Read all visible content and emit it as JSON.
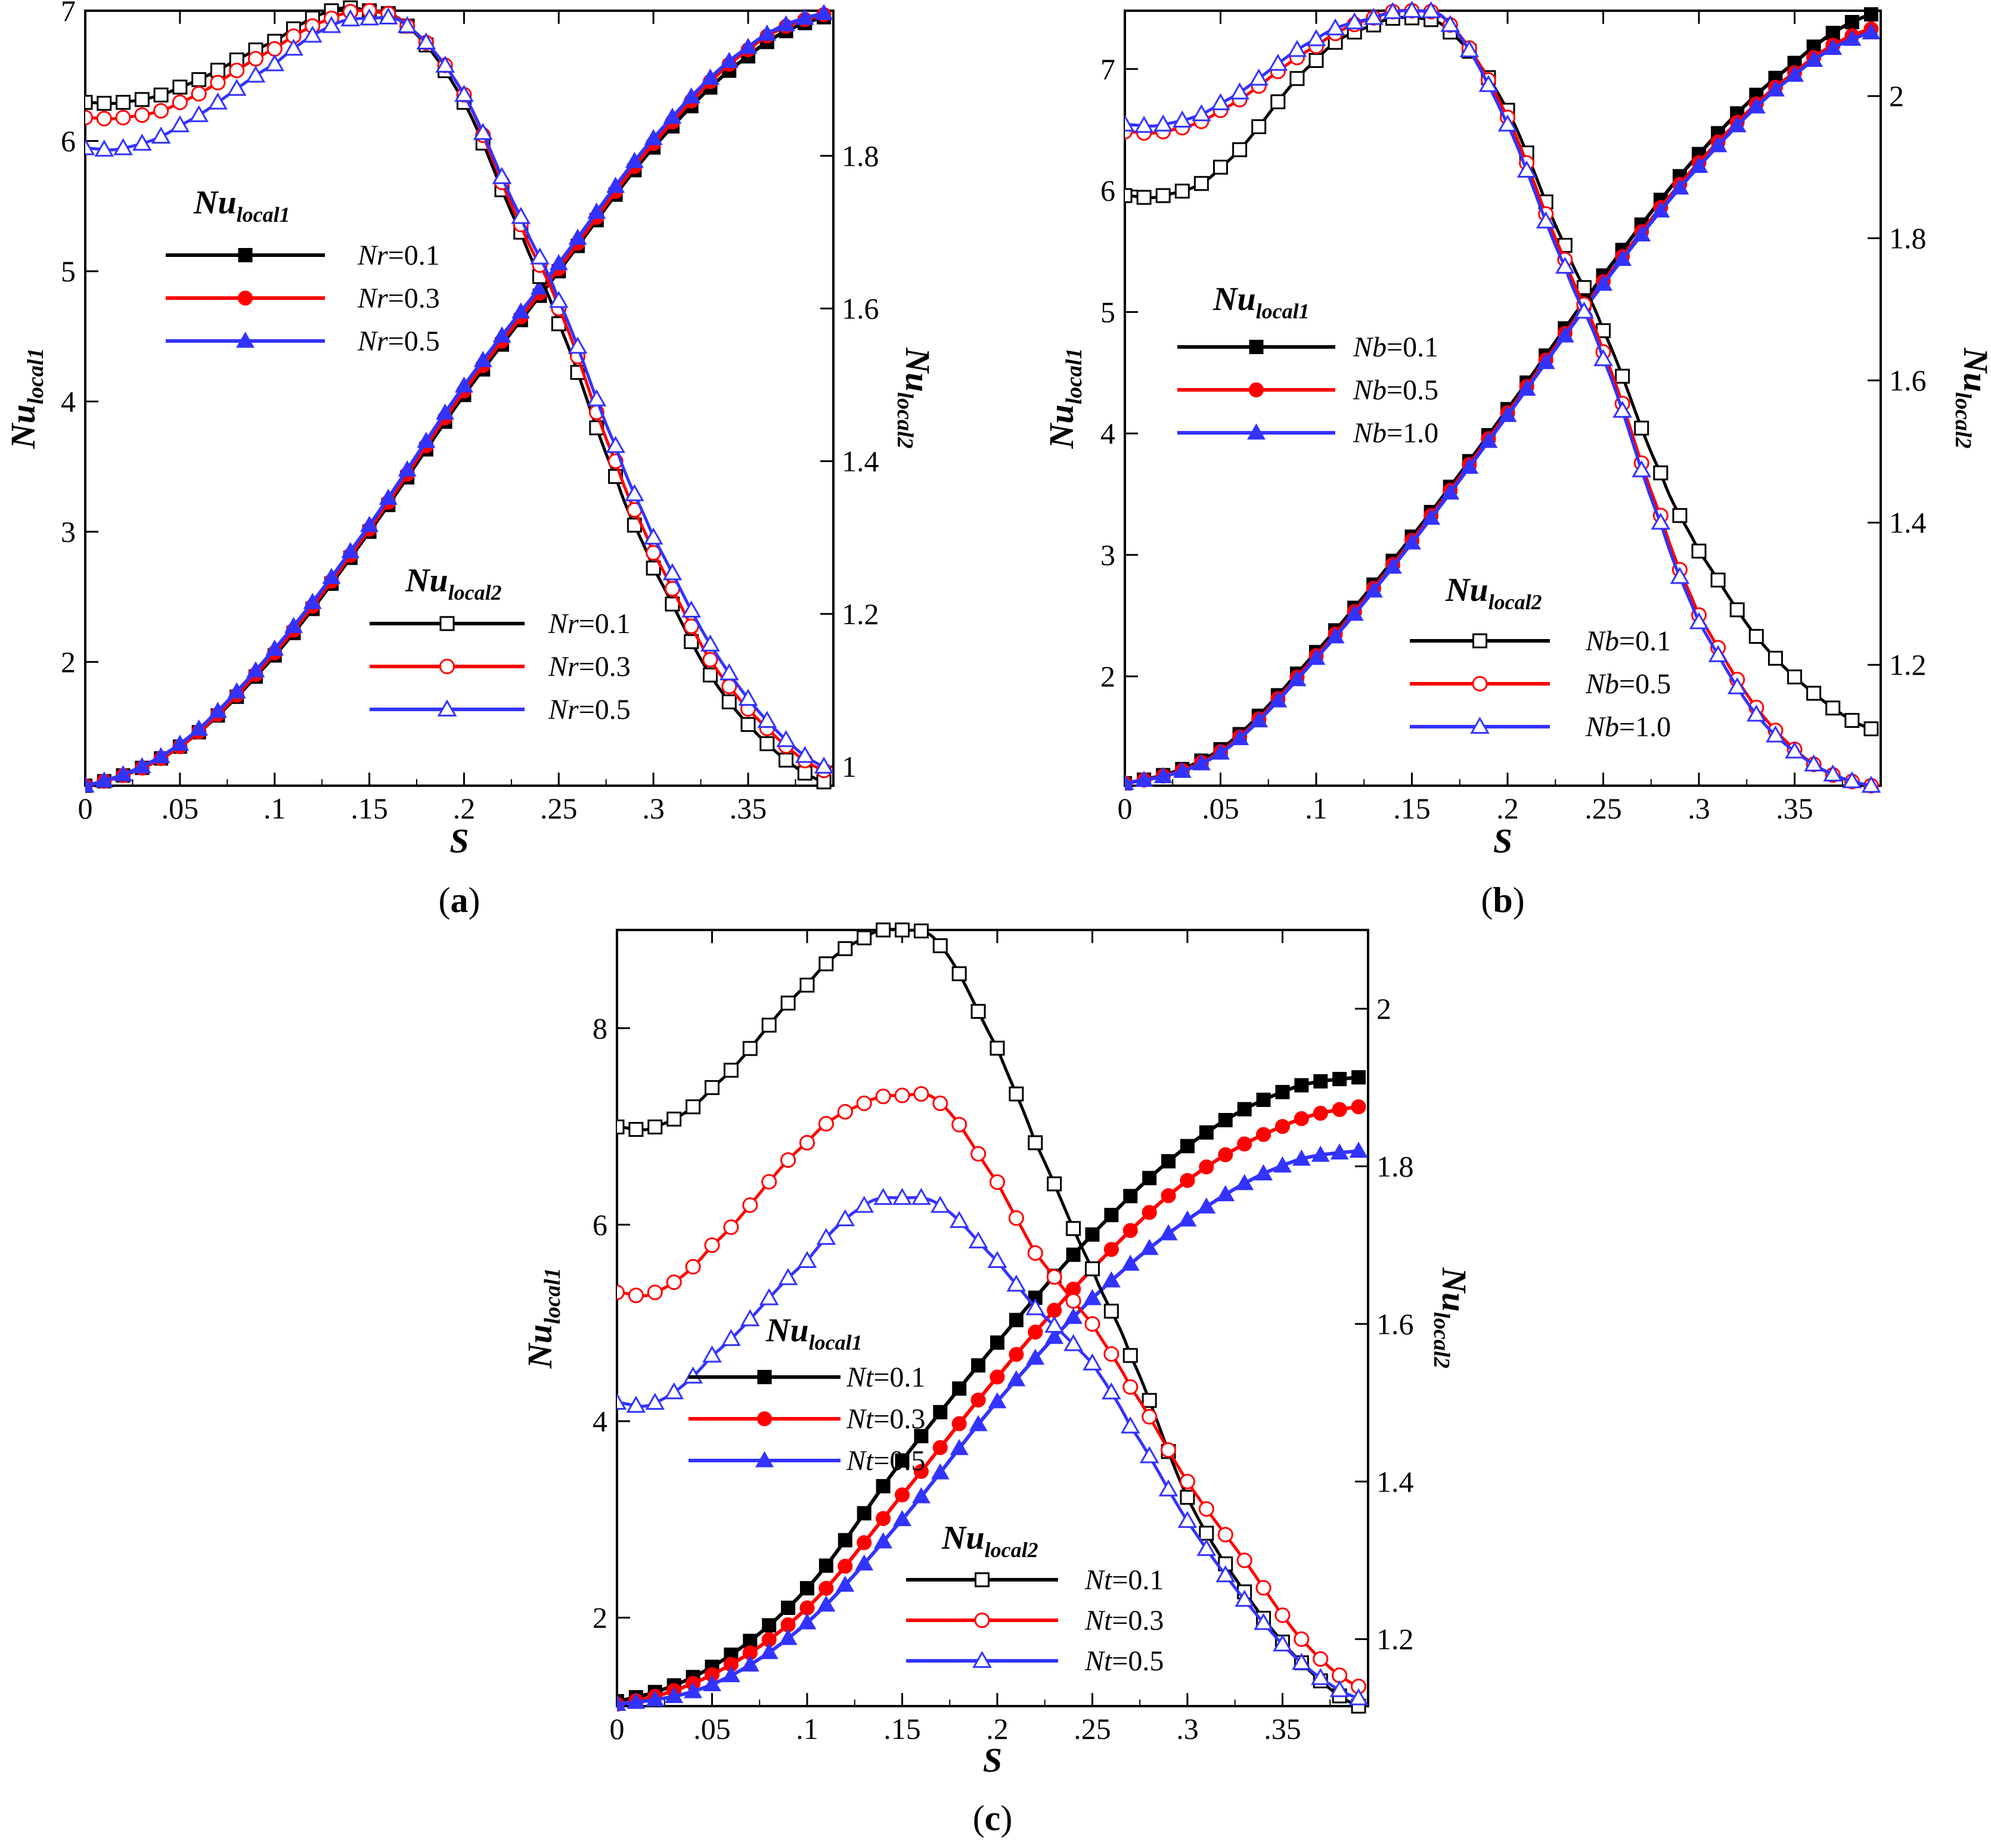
{
  "chart_data": [
    {
      "type": "line",
      "panel_label": "a",
      "xlabel": "S",
      "ylabel_left": {
        "base": "Nu",
        "sub": "local1"
      },
      "ylabel_right": {
        "base": "Nu",
        "sub": "local2"
      },
      "xlim": [
        0,
        0.395
      ],
      "ylim_left": [
        1.05,
        7.0
      ],
      "ylim_right": [
        0.975,
        1.99
      ],
      "x_ticks": [
        0,
        0.05,
        0.1,
        0.15,
        0.2,
        0.25,
        0.3,
        0.35
      ],
      "yleft_ticks": [
        2,
        3,
        4,
        5,
        6,
        7
      ],
      "yright_ticks": [
        1,
        1.2,
        1.4,
        1.6,
        1.8
      ],
      "grid": false,
      "param_name": "Nr",
      "legend1": {
        "title": {
          "base": "Nu",
          "sub": "local1"
        },
        "entries": [
          "=0.1",
          "=0.3",
          "=0.5"
        ]
      },
      "legend2": {
        "title": {
          "base": "Nu",
          "sub": "local2"
        },
        "entries": [
          "=0.1",
          "=0.3",
          "=0.5"
        ]
      },
      "colors": [
        "#000000",
        "#ff0000",
        "#3333ff"
      ],
      "series_left": [
        {
          "x": [
            0,
            0.05,
            0.1,
            0.15,
            0.2,
            0.25,
            0.3,
            0.35,
            0.39
          ],
          "y": [
            1.05,
            1.35,
            2.05,
            3.0,
            4.05,
            5.0,
            5.95,
            6.65,
            6.95
          ]
        },
        {
          "x": [
            0,
            0.05,
            0.1,
            0.15,
            0.2,
            0.25,
            0.3,
            0.35,
            0.39
          ],
          "y": [
            1.05,
            1.35,
            2.07,
            3.02,
            4.08,
            5.02,
            5.98,
            6.7,
            6.97
          ]
        },
        {
          "x": [
            0,
            0.05,
            0.1,
            0.15,
            0.2,
            0.25,
            0.3,
            0.35,
            0.39
          ],
          "y": [
            1.05,
            1.37,
            2.1,
            3.05,
            4.12,
            5.06,
            6.02,
            6.72,
            6.98
          ]
        }
      ],
      "series_right": [
        {
          "x": [
            0,
            0.02,
            0.05,
            0.1,
            0.13,
            0.15,
            0.17,
            0.2,
            0.23,
            0.25,
            0.28,
            0.3,
            0.33,
            0.36,
            0.39
          ],
          "y": [
            1.87,
            1.87,
            1.89,
            1.95,
            1.99,
            1.99,
            1.97,
            1.87,
            1.7,
            1.58,
            1.38,
            1.26,
            1.12,
            1.03,
            0.98
          ]
        },
        {
          "x": [
            0,
            0.02,
            0.05,
            0.1,
            0.13,
            0.15,
            0.17,
            0.2,
            0.23,
            0.25,
            0.28,
            0.3,
            0.33,
            0.36,
            0.39
          ],
          "y": [
            1.85,
            1.85,
            1.87,
            1.94,
            1.98,
            1.99,
            1.97,
            1.88,
            1.71,
            1.6,
            1.4,
            1.28,
            1.14,
            1.05,
            0.995
          ]
        },
        {
          "x": [
            0,
            0.02,
            0.05,
            0.1,
            0.13,
            0.15,
            0.17,
            0.2,
            0.23,
            0.25,
            0.28,
            0.3,
            0.33,
            0.36,
            0.39
          ],
          "y": [
            1.81,
            1.81,
            1.84,
            1.92,
            1.97,
            1.98,
            1.97,
            1.88,
            1.72,
            1.61,
            1.42,
            1.3,
            1.16,
            1.06,
            1.0
          ]
        }
      ]
    },
    {
      "type": "line",
      "panel_label": "b",
      "xlabel": "S",
      "ylabel_left": {
        "base": "Nu",
        "sub": "local1"
      },
      "ylabel_right": {
        "base": "Nu",
        "sub": "local2"
      },
      "xlim": [
        0,
        0.395
      ],
      "ylim_left": [
        1.1,
        7.48
      ],
      "ylim_right": [
        1.03,
        2.12
      ],
      "x_ticks": [
        0,
        0.05,
        0.1,
        0.15,
        0.2,
        0.25,
        0.3,
        0.35
      ],
      "yleft_ticks": [
        2,
        3,
        4,
        5,
        6,
        7
      ],
      "yright_ticks": [
        1.2,
        1.4,
        1.6,
        1.8,
        2
      ],
      "grid": false,
      "param_name": "Nb",
      "legend1": {
        "title": {
          "base": "Nu",
          "sub": "local1"
        },
        "entries": [
          "=0.1",
          "=0.5",
          "=1.0"
        ]
      },
      "legend2": {
        "title": {
          "base": "Nu",
          "sub": "local2"
        },
        "entries": [
          "=0.1",
          "=0.5",
          "=1.0"
        ]
      },
      "colors": [
        "#000000",
        "#ff0000",
        "#3333ff"
      ],
      "series_left": [
        {
          "x": [
            0,
            0.05,
            0.1,
            0.15,
            0.2,
            0.25,
            0.3,
            0.35,
            0.39
          ],
          "y": [
            1.12,
            1.4,
            2.2,
            3.15,
            4.2,
            5.3,
            6.3,
            7.05,
            7.45
          ]
        },
        {
          "x": [
            0,
            0.05,
            0.1,
            0.15,
            0.2,
            0.25,
            0.3,
            0.35,
            0.39
          ],
          "y": [
            1.12,
            1.38,
            2.17,
            3.12,
            4.17,
            5.25,
            6.23,
            6.97,
            7.33
          ]
        },
        {
          "x": [
            0,
            0.05,
            0.1,
            0.15,
            0.2,
            0.25,
            0.3,
            0.35,
            0.39
          ],
          "y": [
            1.12,
            1.37,
            2.15,
            3.1,
            4.15,
            5.23,
            6.2,
            6.95,
            7.3
          ]
        }
      ],
      "series_right": [
        {
          "x": [
            0,
            0.02,
            0.05,
            0.1,
            0.13,
            0.15,
            0.17,
            0.2,
            0.23,
            0.25,
            0.28,
            0.3,
            0.33,
            0.36,
            0.39
          ],
          "y": [
            1.86,
            1.86,
            1.9,
            2.05,
            2.1,
            2.11,
            2.09,
            1.98,
            1.79,
            1.67,
            1.47,
            1.36,
            1.24,
            1.16,
            1.11
          ]
        },
        {
          "x": [
            0,
            0.02,
            0.05,
            0.1,
            0.13,
            0.15,
            0.17,
            0.2,
            0.23,
            0.25,
            0.28,
            0.3,
            0.33,
            0.36,
            0.39
          ],
          "y": [
            1.95,
            1.95,
            1.98,
            2.07,
            2.11,
            2.12,
            2.1,
            1.97,
            1.77,
            1.64,
            1.41,
            1.27,
            1.14,
            1.06,
            1.03
          ]
        },
        {
          "x": [
            0,
            0.02,
            0.05,
            0.1,
            0.13,
            0.15,
            0.17,
            0.2,
            0.23,
            0.25,
            0.28,
            0.3,
            0.33,
            0.36,
            0.39
          ],
          "y": [
            1.96,
            1.96,
            1.99,
            2.08,
            2.11,
            2.12,
            2.1,
            1.96,
            1.76,
            1.63,
            1.4,
            1.26,
            1.13,
            1.06,
            1.03
          ]
        }
      ]
    },
    {
      "type": "line",
      "panel_label": "c",
      "xlabel": "S",
      "ylabel_left": {
        "base": "Nu",
        "sub": "local1"
      },
      "ylabel_right": {
        "base": "Nu",
        "sub": "local2"
      },
      "xlim": [
        0,
        0.395
      ],
      "ylim_left": [
        1.1,
        9.0
      ],
      "ylim_right": [
        1.115,
        2.1
      ],
      "x_ticks": [
        0,
        0.05,
        0.1,
        0.15,
        0.2,
        0.25,
        0.3,
        0.35
      ],
      "yleft_ticks": [
        2,
        4,
        6,
        8
      ],
      "yright_ticks": [
        1.2,
        1.4,
        1.6,
        1.8,
        2
      ],
      "grid": false,
      "param_name": "Nt",
      "legend1": {
        "title": {
          "base": "Nu",
          "sub": "local1"
        },
        "entries": [
          "=0.1",
          "=0.3",
          "=0.5"
        ]
      },
      "legend2": {
        "title": {
          "base": "Nu",
          "sub": "local2"
        },
        "entries": [
          "=0.1",
          "=0.3",
          "=0.5"
        ]
      },
      "colors": [
        "#000000",
        "#ff0000",
        "#3333ff"
      ],
      "series_left": [
        {
          "x": [
            0,
            0.05,
            0.1,
            0.15,
            0.2,
            0.25,
            0.3,
            0.35,
            0.39
          ],
          "y": [
            1.15,
            1.5,
            2.3,
            3.6,
            4.8,
            5.9,
            6.8,
            7.35,
            7.5
          ]
        },
        {
          "x": [
            0,
            0.05,
            0.1,
            0.15,
            0.2,
            0.25,
            0.3,
            0.35,
            0.39
          ],
          "y": [
            1.12,
            1.42,
            2.1,
            3.25,
            4.45,
            5.55,
            6.45,
            7.0,
            7.2
          ]
        },
        {
          "x": [
            0,
            0.05,
            0.1,
            0.15,
            0.2,
            0.25,
            0.3,
            0.35,
            0.39
          ],
          "y": [
            1.12,
            1.32,
            1.95,
            3.0,
            4.2,
            5.25,
            6.05,
            6.6,
            6.75
          ]
        }
      ],
      "series_right": [
        {
          "x": [
            0,
            0.02,
            0.05,
            0.1,
            0.13,
            0.15,
            0.17,
            0.2,
            0.22,
            0.25,
            0.27,
            0.3,
            0.33,
            0.36,
            0.39
          ],
          "y": [
            1.85,
            1.85,
            1.9,
            2.03,
            2.09,
            2.1,
            2.08,
            1.95,
            1.83,
            1.67,
            1.56,
            1.38,
            1.26,
            1.17,
            1.115
          ]
        },
        {
          "x": [
            0,
            0.02,
            0.05,
            0.1,
            0.13,
            0.15,
            0.17,
            0.2,
            0.22,
            0.25,
            0.27,
            0.3,
            0.33,
            0.36,
            0.39
          ],
          "y": [
            1.64,
            1.64,
            1.7,
            1.83,
            1.88,
            1.89,
            1.88,
            1.78,
            1.69,
            1.6,
            1.52,
            1.4,
            1.3,
            1.2,
            1.14
          ]
        },
        {
          "x": [
            0,
            0.02,
            0.05,
            0.1,
            0.13,
            0.15,
            0.17,
            0.2,
            0.22,
            0.25,
            0.27,
            0.3,
            0.33,
            0.36,
            0.39
          ],
          "y": [
            1.5,
            1.5,
            1.56,
            1.68,
            1.75,
            1.76,
            1.75,
            1.68,
            1.62,
            1.55,
            1.47,
            1.35,
            1.25,
            1.17,
            1.125
          ]
        }
      ]
    }
  ]
}
